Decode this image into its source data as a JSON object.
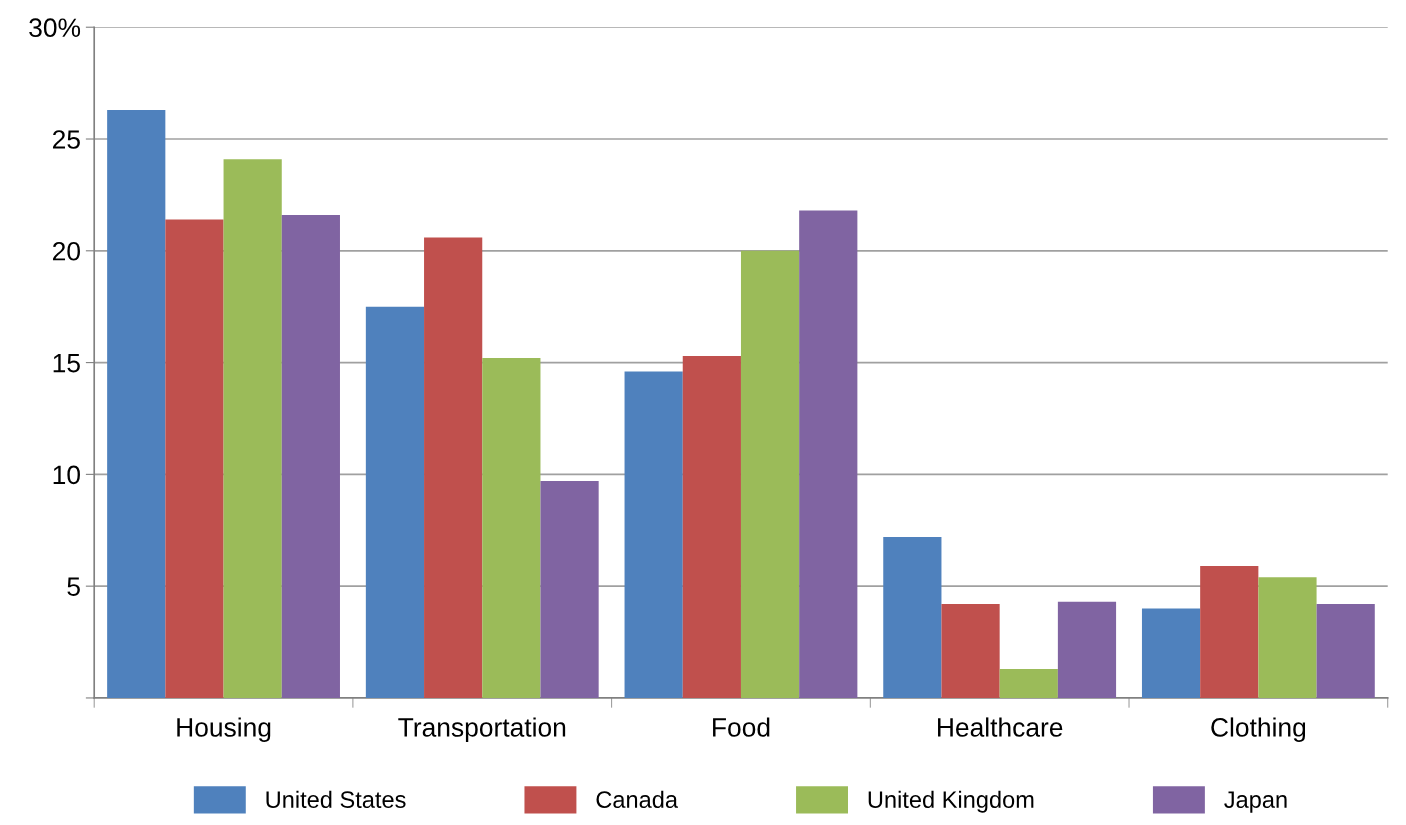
{
  "chart_data": {
    "type": "bar",
    "categories": [
      "Housing",
      "Transportation",
      "Food",
      "Healthcare",
      "Clothing"
    ],
    "series": [
      {
        "name": "United States",
        "color": "#4f81bd",
        "values": [
          26.3,
          17.5,
          14.6,
          7.2,
          4.0
        ]
      },
      {
        "name": "Canada",
        "color": "#c0504d",
        "values": [
          21.4,
          20.6,
          15.3,
          4.2,
          5.9
        ]
      },
      {
        "name": "United Kingdom",
        "color": "#9bbb59",
        "values": [
          24.1,
          15.2,
          20.0,
          1.3,
          5.4
        ]
      },
      {
        "name": "Japan",
        "color": "#8064a2",
        "values": [
          21.6,
          9.7,
          21.8,
          4.3,
          4.2
        ]
      }
    ],
    "ylim": [
      0,
      30
    ],
    "yticks": [
      {
        "value": 0,
        "label": null
      },
      5,
      10,
      15,
      20,
      25,
      {
        "value": 30,
        "label": "30%"
      }
    ],
    "grid": "y",
    "legend": "bottom"
  }
}
